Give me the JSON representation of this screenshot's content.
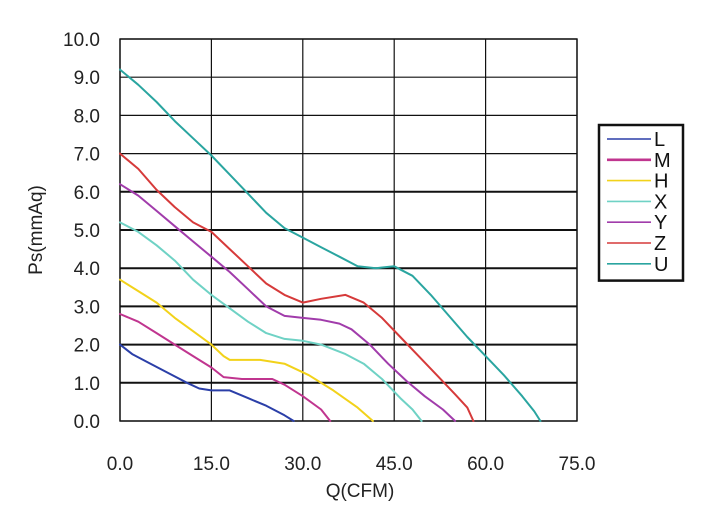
{
  "chart_data": {
    "type": "line",
    "xlabel": "Q(CFM)",
    "ylabel": "Ps(mmAq)",
    "xlim": [
      0,
      75
    ],
    "ylim": [
      0,
      10
    ],
    "x_ticks": [
      "0.0",
      "15.0",
      "30.0",
      "45.0",
      "60.0",
      "75.0"
    ],
    "y_ticks": [
      "0.0",
      "1.0",
      "2.0",
      "3.0",
      "4.0",
      "5.0",
      "6.0",
      "7.0",
      "8.0",
      "9.0",
      "10.0"
    ],
    "grid": true,
    "legend_position": "right",
    "series": [
      {
        "name": "L",
        "color": "#2b3fa8",
        "width": 1.6,
        "points": [
          [
            0,
            2.0
          ],
          [
            2,
            1.75
          ],
          [
            5,
            1.5
          ],
          [
            8,
            1.25
          ],
          [
            11,
            1.0
          ],
          [
            13,
            0.85
          ],
          [
            15,
            0.8
          ],
          [
            18,
            0.8
          ],
          [
            21,
            0.6
          ],
          [
            24,
            0.4
          ],
          [
            27,
            0.15
          ],
          [
            28.5,
            0.0
          ]
        ]
      },
      {
        "name": "M",
        "color": "#c0358f",
        "width": 2.6,
        "points": [
          [
            0,
            2.8
          ],
          [
            3,
            2.6
          ],
          [
            6,
            2.3
          ],
          [
            9,
            2.0
          ],
          [
            12,
            1.7
          ],
          [
            15,
            1.4
          ],
          [
            17,
            1.15
          ],
          [
            20,
            1.1
          ],
          [
            25,
            1.1
          ],
          [
            27,
            0.95
          ],
          [
            30,
            0.65
          ],
          [
            33,
            0.3
          ],
          [
            34.5,
            0.0
          ]
        ]
      },
      {
        "name": "H",
        "color": "#f2d21a",
        "width": 1.6,
        "points": [
          [
            0,
            3.7
          ],
          [
            3,
            3.4
          ],
          [
            6,
            3.1
          ],
          [
            9,
            2.7
          ],
          [
            12,
            2.35
          ],
          [
            15,
            2.0
          ],
          [
            17,
            1.7
          ],
          [
            18,
            1.6
          ],
          [
            23,
            1.6
          ],
          [
            27,
            1.5
          ],
          [
            31,
            1.2
          ],
          [
            35,
            0.8
          ],
          [
            39,
            0.35
          ],
          [
            41.5,
            0.0
          ]
        ]
      },
      {
        "name": "X",
        "color": "#6fd2c5",
        "width": 1.6,
        "points": [
          [
            0,
            5.2
          ],
          [
            3,
            4.95
          ],
          [
            6,
            4.6
          ],
          [
            9,
            4.2
          ],
          [
            12,
            3.7
          ],
          [
            15,
            3.3
          ],
          [
            18,
            2.95
          ],
          [
            21,
            2.6
          ],
          [
            24,
            2.3
          ],
          [
            27,
            2.15
          ],
          [
            30,
            2.1
          ],
          [
            33,
            2.0
          ],
          [
            37,
            1.75
          ],
          [
            40,
            1.5
          ],
          [
            43,
            1.1
          ],
          [
            46,
            0.6
          ],
          [
            48,
            0.3
          ],
          [
            49.5,
            0.0
          ]
        ]
      },
      {
        "name": "Y",
        "color": "#a13cab",
        "width": 1.6,
        "points": [
          [
            0,
            6.2
          ],
          [
            3,
            5.9
          ],
          [
            6,
            5.5
          ],
          [
            9,
            5.1
          ],
          [
            12,
            4.7
          ],
          [
            15,
            4.3
          ],
          [
            18,
            3.9
          ],
          [
            21,
            3.45
          ],
          [
            24,
            3.0
          ],
          [
            27,
            2.75
          ],
          [
            30,
            2.7
          ],
          [
            33,
            2.65
          ],
          [
            36,
            2.55
          ],
          [
            38,
            2.4
          ],
          [
            41,
            2.0
          ],
          [
            44,
            1.5
          ],
          [
            47,
            1.05
          ],
          [
            50,
            0.65
          ],
          [
            53,
            0.3
          ],
          [
            55,
            0.0
          ]
        ]
      },
      {
        "name": "Z",
        "color": "#d63a3a",
        "width": 1.6,
        "points": [
          [
            0,
            7.0
          ],
          [
            3,
            6.6
          ],
          [
            6,
            6.05
          ],
          [
            9,
            5.6
          ],
          [
            12,
            5.2
          ],
          [
            15,
            4.95
          ],
          [
            18,
            4.5
          ],
          [
            21,
            4.05
          ],
          [
            24,
            3.6
          ],
          [
            27,
            3.3
          ],
          [
            30,
            3.1
          ],
          [
            33,
            3.2
          ],
          [
            37,
            3.3
          ],
          [
            40,
            3.1
          ],
          [
            43,
            2.7
          ],
          [
            46,
            2.2
          ],
          [
            49,
            1.7
          ],
          [
            52,
            1.2
          ],
          [
            55,
            0.7
          ],
          [
            57,
            0.35
          ],
          [
            58,
            0.0
          ]
        ]
      },
      {
        "name": "U",
        "color": "#2aa5a0",
        "width": 1.6,
        "points": [
          [
            0,
            9.2
          ],
          [
            3,
            8.8
          ],
          [
            6,
            8.35
          ],
          [
            9,
            7.85
          ],
          [
            12,
            7.4
          ],
          [
            15,
            6.95
          ],
          [
            18,
            6.45
          ],
          [
            21,
            5.95
          ],
          [
            24,
            5.45
          ],
          [
            27,
            5.05
          ],
          [
            30,
            4.8
          ],
          [
            33,
            4.55
          ],
          [
            36,
            4.3
          ],
          [
            39,
            4.05
          ],
          [
            42,
            4.0
          ],
          [
            45,
            4.05
          ],
          [
            48,
            3.8
          ],
          [
            51,
            3.3
          ],
          [
            54,
            2.75
          ],
          [
            57,
            2.2
          ],
          [
            60,
            1.7
          ],
          [
            63,
            1.2
          ],
          [
            66,
            0.65
          ],
          [
            68,
            0.25
          ],
          [
            69,
            0.0
          ]
        ]
      }
    ]
  }
}
